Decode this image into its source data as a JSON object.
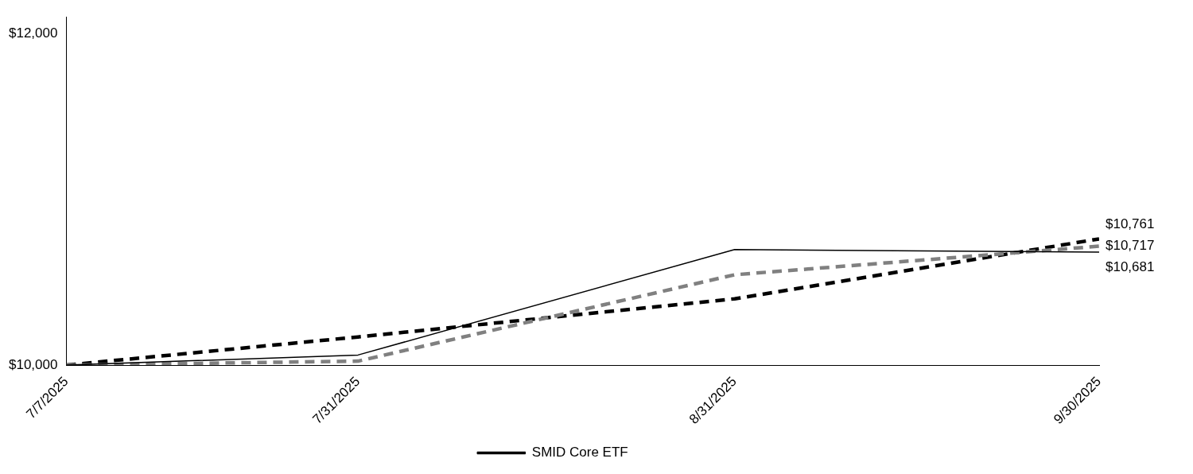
{
  "chart_data": {
    "type": "line",
    "x": [
      "2025-07-07",
      "2025-07-31",
      "2025-08-31",
      "2025-09-30"
    ],
    "series": [
      {
        "name": "SMID Core ETF",
        "color": "#000000",
        "line_style": "solid",
        "values": [
          10000,
          10061,
          10697,
          10681
        ],
        "value_labels": [
          null,
          null,
          null,
          "$10,681"
        ]
      },
      {
        "color": "#808080",
        "line_style": "dashed",
        "values": [
          10000,
          10024,
          10545,
          10717
        ],
        "value_labels": [
          null,
          null,
          null,
          "$10,717"
        ]
      },
      {
        "color": "#000000",
        "line_style": "dashed",
        "values": [
          10000,
          10170,
          10400,
          10761
        ],
        "value_labels": [
          null,
          null,
          null,
          "$10,761"
        ]
      }
    ],
    "xlim": [
      "2025-07-07",
      "2025-09-30"
    ],
    "xticks": [
      {
        "value": "2025-07-07",
        "label": "7/7/2025"
      },
      {
        "value": "2025-07-31",
        "label": "7/31/2025"
      },
      {
        "value": "2025-08-31",
        "label": "8/31/2025"
      },
      {
        "value": "2025-09-30",
        "label": "9/30/2025"
      }
    ],
    "ylim": [
      10000,
      12100
    ],
    "yticks": [
      {
        "value": 10000,
        "label": "$10,000"
      },
      {
        "value": 12000,
        "label": "$12,000"
      }
    ],
    "grid": false,
    "legend": "bottom",
    "marker": "none"
  }
}
